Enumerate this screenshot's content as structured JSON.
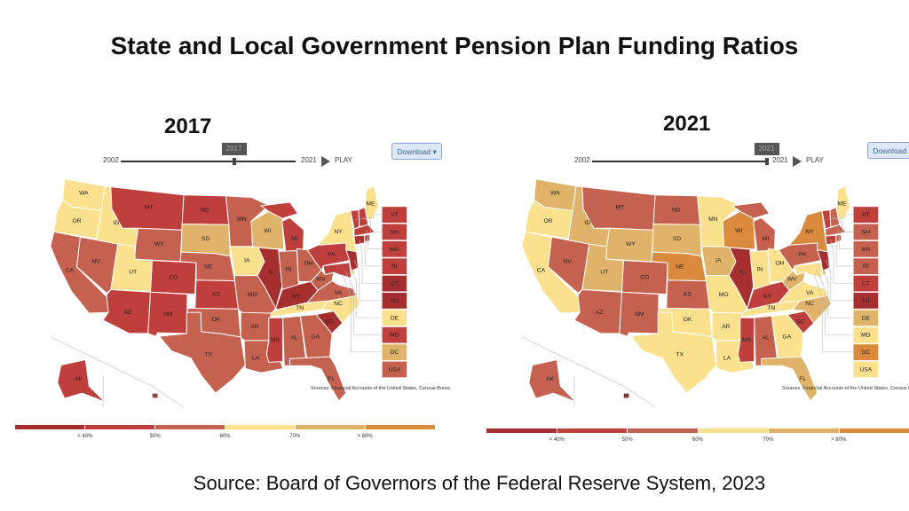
{
  "title": "State and Local Government Pension Plan Funding Ratios",
  "footer": "Source: Board of Governors of the Federal Reserve System, 2023",
  "legend": {
    "labels": [
      "< 40%",
      "50%",
      "60%",
      "70%",
      "> 80%"
    ],
    "colors": [
      "#a52f2e",
      "#be3f3b",
      "#c4614f",
      "#fbe08d",
      "#dfb46a",
      "#d98a3c"
    ]
  },
  "panels": [
    {
      "year": "2017",
      "slider": {
        "start": "2002",
        "end": "2021",
        "value": "2017"
      },
      "play_label": "PLAY",
      "download_label": "Download ▾",
      "sources": "Sources: Financial Accounts of the United States, Census Burea",
      "bins": {
        "WA": 3,
        "OR": 3,
        "CA": 2,
        "ID": 3,
        "NV": 2,
        "UT": 3,
        "AZ": 1,
        "MT": 1,
        "WY": 2,
        "CO": 1,
        "NM": 1,
        "ND": 1,
        "SD": 4,
        "NE": 2,
        "KS": 1,
        "OK": 2,
        "TX": 2,
        "MN": 2,
        "IA": 3,
        "MO": 2,
        "AR": 2,
        "LA": 2,
        "WI": 4,
        "IL": 0,
        "MI": 1,
        "IN": 2,
        "OH": 2,
        "KY": 0,
        "TN": 3,
        "MS": 1,
        "AL": 2,
        "GA": 2,
        "FL": 2,
        "SC": 0,
        "NC": 3,
        "VA": 2,
        "WV": 2,
        "PA": 1,
        "NY": 3,
        "ME": 3,
        "VT": 1,
        "NH": 1,
        "MA": 1,
        "RI": 1,
        "CT": 0,
        "NJ": 0,
        "DE": 3,
        "MD": 1,
        "DC": 4,
        "USA": 2,
        "AK": 1,
        "HI": 2
      }
    },
    {
      "year": "2021",
      "slider": {
        "start": "2002",
        "end": "2021",
        "value": "2021"
      },
      "play_label": "PLAY",
      "download_label": "Download ▾",
      "sources": "Sources: Financial Accounts of the United States, Census Burea",
      "bins": {
        "WA": 4,
        "OR": 3,
        "CA": 3,
        "ID": 4,
        "NV": 2,
        "UT": 4,
        "AZ": 2,
        "MT": 2,
        "WY": 4,
        "CO": 2,
        "NM": 2,
        "ND": 2,
        "SD": 4,
        "NE": 5,
        "KS": 2,
        "OK": 3,
        "TX": 3,
        "MN": 3,
        "IA": 4,
        "MO": 3,
        "AR": 3,
        "LA": 3,
        "WI": 5,
        "IL": 0,
        "MI": 2,
        "IN": 3,
        "OH": 3,
        "KY": 1,
        "TN": 3,
        "MS": 1,
        "AL": 2,
        "GA": 3,
        "FL": 4,
        "SC": 1,
        "NC": 4,
        "VA": 3,
        "WV": 4,
        "PA": 2,
        "NY": 5,
        "ME": 3,
        "VT": 1,
        "NH": 2,
        "MA": 2,
        "RI": 2,
        "CT": 1,
        "NJ": 0,
        "DE": 4,
        "MD": 3,
        "DC": 5,
        "USA": 3,
        "AK": 2,
        "HI": 1
      }
    }
  ],
  "side_boxes": [
    "VT",
    "NH",
    "MA",
    "RI",
    "CT",
    "NJ",
    "DE",
    "MD",
    "DC",
    "USA"
  ]
}
